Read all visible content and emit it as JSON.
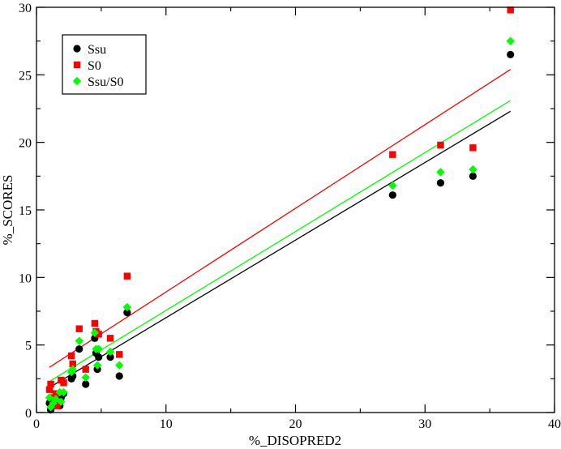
{
  "chart_data": {
    "type": "scatter",
    "title": "",
    "xlabel": "%_DISOPRED2",
    "ylabel": "%_SCORES",
    "xlim": [
      0,
      40
    ],
    "ylim": [
      0,
      30
    ],
    "xticks": [
      0,
      10,
      20,
      30,
      40
    ],
    "yticks": [
      0,
      5,
      10,
      15,
      20,
      25,
      30
    ],
    "xtick_labels": [
      "0",
      "10",
      "20",
      "30",
      "40"
    ],
    "ytick_labels": [
      "0",
      "5",
      "10",
      "15",
      "20",
      "25",
      "30"
    ],
    "grid": false,
    "legend_position": "top-left",
    "series": [
      {
        "name": "Ssu",
        "marker": "circle",
        "color": "#000000",
        "x": [
          1.0,
          1.1,
          1.3,
          1.5,
          1.8,
          1.9,
          2.1,
          2.7,
          2.8,
          3.3,
          3.8,
          4.5,
          4.6,
          4.7,
          4.8,
          5.7,
          6.4,
          7.0,
          27.5,
          31.2,
          33.7,
          36.6
        ],
        "y": [
          0.7,
          0.2,
          0.5,
          0.8,
          0.5,
          1.1,
          1.4,
          2.5,
          2.7,
          4.7,
          2.1,
          5.5,
          4.4,
          3.2,
          4.1,
          4.1,
          2.7,
          7.4,
          16.1,
          17.0,
          17.5,
          26.5
        ]
      },
      {
        "name": "S0",
        "marker": "square",
        "color": "#ff0000",
        "x": [
          1.0,
          1.1,
          1.2,
          1.5,
          1.6,
          1.9,
          2.1,
          2.7,
          2.8,
          3.3,
          3.8,
          4.5,
          4.6,
          4.8,
          5.7,
          6.4,
          7.0,
          27.5,
          31.2,
          33.7,
          36.6
        ],
        "y": [
          1.7,
          2.1,
          1.1,
          1.4,
          0.5,
          2.4,
          2.2,
          4.2,
          3.6,
          6.2,
          3.2,
          6.6,
          6.0,
          5.8,
          5.5,
          4.3,
          10.1,
          19.1,
          19.8,
          19.6,
          29.8
        ]
      },
      {
        "name": "Ssu/S0",
        "marker": "diamond",
        "color": "#00ff00",
        "x": [
          1.0,
          1.1,
          1.3,
          1.5,
          1.8,
          1.9,
          2.1,
          2.7,
          2.8,
          3.3,
          3.8,
          4.5,
          4.6,
          4.7,
          4.8,
          5.7,
          6.4,
          7.0,
          27.5,
          31.2,
          33.7,
          36.6
        ],
        "y": [
          1.1,
          0.4,
          0.7,
          1.0,
          1.5,
          0.8,
          1.5,
          3.0,
          3.2,
          5.3,
          2.6,
          5.9,
          4.7,
          3.5,
          4.7,
          4.5,
          3.5,
          7.8,
          16.8,
          17.8,
          18.0,
          27.5
        ]
      }
    ],
    "fit_lines": [
      {
        "name": "Ssu fit",
        "color": "#000000",
        "x": [
          1.0,
          36.6
        ],
        "y": [
          1.85,
          22.3
        ]
      },
      {
        "name": "S0 fit",
        "color": "#ff0000",
        "x": [
          1.0,
          36.6
        ],
        "y": [
          3.35,
          25.4
        ]
      },
      {
        "name": "Ssu/S0 fit",
        "color": "#00ff00",
        "x": [
          1.0,
          36.6
        ],
        "y": [
          2.3,
          23.1
        ]
      }
    ]
  }
}
